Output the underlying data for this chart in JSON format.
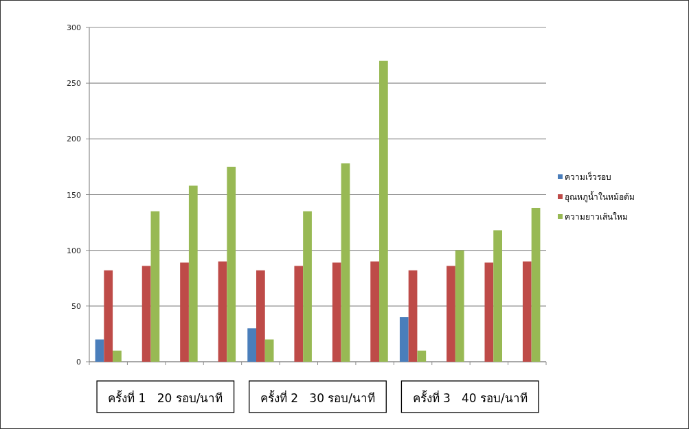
{
  "chart_data": {
    "type": "bar",
    "categories": [
      null,
      null,
      null,
      null,
      null,
      null,
      null,
      null,
      null,
      null,
      null,
      null
    ],
    "series": [
      {
        "name": "ความเร็วรอบ",
        "color": "#4a7ebb",
        "values": [
          20,
          null,
          null,
          null,
          30,
          null,
          null,
          null,
          40,
          null,
          null,
          null
        ]
      },
      {
        "name": "อุณหภูน้ำในหม้อต้ม",
        "color": "#be4b48",
        "values": [
          82,
          86,
          89,
          90,
          82,
          86,
          89,
          90,
          82,
          86,
          89,
          90
        ]
      },
      {
        "name": "ความยาวเส้นใหม",
        "color": "#98b954",
        "values": [
          10,
          135,
          158,
          175,
          20,
          135,
          178,
          270,
          10,
          100,
          118,
          138
        ]
      }
    ],
    "ylim": [
      0,
      300
    ],
    "yticks": [
      0,
      50,
      100,
      150,
      200,
      250,
      300
    ],
    "grid": "y",
    "legend": "right",
    "annotations": [
      "ครั้งที่ 1   20 รอบ/นาที",
      "ครั้งที่ 2   30 รอบ/นาที",
      "ครั้งที่ 3   40 รอบ/นาที"
    ]
  }
}
